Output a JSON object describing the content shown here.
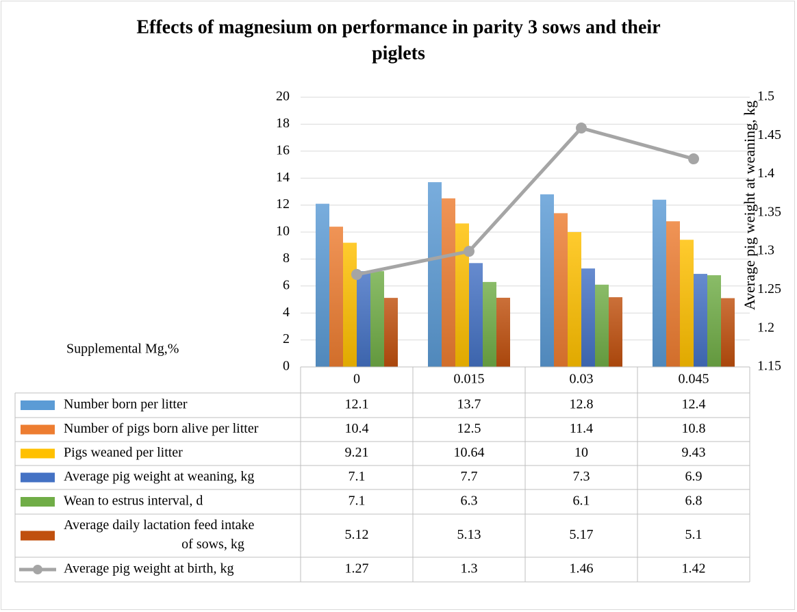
{
  "chart_data": {
    "type": "bar",
    "title": "Effects of magnesium on performance in parity 3 sows and their piglets",
    "title_lines": [
      "Effects of magnesium on performance in parity 3 sows and their",
      "piglets"
    ],
    "xlabel": "Supplemental Mg,%",
    "ylabel": "",
    "y2label": "Average pig weight at weaning, kg",
    "categories": [
      "0",
      "0.015",
      "0.03",
      "0.045"
    ],
    "ylim": [
      0,
      20
    ],
    "yticks": [
      "0",
      "2",
      "4",
      "6",
      "8",
      "10",
      "12",
      "14",
      "16",
      "18",
      "20"
    ],
    "y2lim": [
      1.15,
      1.5
    ],
    "y2ticks": [
      "1.15",
      "1.2",
      "1.25",
      "1.3",
      "1.35",
      "1.4",
      "1.45",
      "1.5"
    ],
    "grid": true,
    "legend": "data-table",
    "series": [
      {
        "name": "Number born per litter",
        "type": "bar",
        "axis": "primary",
        "color": "#5b9bd5",
        "values": [
          12.1,
          13.7,
          12.8,
          12.4
        ],
        "labels": [
          "12.1",
          "13.7",
          "12.8",
          "12.4"
        ]
      },
      {
        "name": "Number of pigs born alive per litter",
        "type": "bar",
        "axis": "primary",
        "color": "#ed7d31",
        "values": [
          10.4,
          12.5,
          11.4,
          10.8
        ],
        "labels": [
          "10.4",
          "12.5",
          "11.4",
          "10.8"
        ]
      },
      {
        "name": "Pigs weaned per litter",
        "type": "bar",
        "axis": "primary",
        "color": "#ffc000",
        "values": [
          9.21,
          10.64,
          10,
          9.43
        ],
        "labels": [
          "9.21",
          "10.64",
          "10",
          "9.43"
        ]
      },
      {
        "name": "Average pig weight at weaning, kg",
        "type": "bar",
        "axis": "primary",
        "color": "#4472c4",
        "values": [
          7.1,
          7.7,
          7.3,
          6.9
        ],
        "labels": [
          "7.1",
          "7.7",
          "7.3",
          "6.9"
        ]
      },
      {
        "name": "Wean to estrus interval, d",
        "type": "bar",
        "axis": "primary",
        "color": "#70ad47",
        "values": [
          7.1,
          6.3,
          6.1,
          6.8
        ],
        "labels": [
          "7.1",
          "6.3",
          "6.1",
          "6.8"
        ]
      },
      {
        "name": "Average daily lactation feed intake of sows, kg",
        "name_lines": [
          "Average daily lactation feed intake",
          "of sows, kg"
        ],
        "type": "bar",
        "axis": "primary",
        "color": "#c0500e",
        "values": [
          5.12,
          5.13,
          5.17,
          5.1
        ],
        "labels": [
          "5.12",
          "5.13",
          "5.17",
          "5.1"
        ]
      },
      {
        "name": "Average pig weight at birth, kg",
        "type": "line",
        "axis": "secondary",
        "color": "#a5a5a5",
        "values": [
          1.27,
          1.3,
          1.46,
          1.42
        ],
        "labels": [
          "1.27",
          "1.3",
          "1.46",
          "1.42"
        ]
      }
    ]
  }
}
